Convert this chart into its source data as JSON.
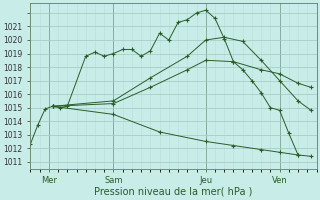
{
  "xlabel": "Pression niveau de la mer( hPa )",
  "yticks": [
    1010,
    1011,
    1012,
    1013,
    1014,
    1015,
    1016,
    1017,
    1018,
    1019,
    1020,
    1021
  ],
  "bg_color": "#c8ece8",
  "grid_major_color": "#a0c8c0",
  "grid_minor_color": "#b8dcd8",
  "line_color": "#2a5c2a",
  "xtick_labels": [
    "Mer",
    "Sam",
    "Jeu",
    "Ven"
  ],
  "xtick_positions": [
    1.0,
    4.5,
    9.5,
    13.5
  ],
  "vline_positions": [
    1.0,
    4.5,
    9.5,
    13.5
  ],
  "xlim": [
    0.0,
    15.5
  ],
  "ylim": [
    1009.5,
    1021.7
  ],
  "line1_x": [
    0.0,
    0.4,
    0.8,
    1.2,
    1.6,
    2.0,
    3.0,
    3.5,
    4.0,
    4.5,
    5.0,
    5.5,
    6.0,
    6.5,
    7.0,
    7.5,
    8.0,
    8.5,
    9.0,
    9.5,
    10.0,
    10.5,
    11.0,
    11.5,
    12.0,
    12.5,
    13.0,
    13.5,
    14.0,
    14.5
  ],
  "line1_y": [
    1011.3,
    1012.7,
    1013.9,
    1014.1,
    1014.0,
    1014.1,
    1017.8,
    1018.1,
    1017.8,
    1018.0,
    1018.3,
    1018.3,
    1017.8,
    1018.2,
    1019.5,
    1019.0,
    1020.3,
    1020.5,
    1021.0,
    1021.2,
    1020.6,
    1019.1,
    1017.4,
    1016.8,
    1016.0,
    1015.1,
    1014.0,
    1013.8,
    1012.1,
    1010.5
  ],
  "line2_x": [
    1.2,
    4.5,
    6.5,
    8.5,
    9.5,
    11.0,
    12.5,
    13.5,
    14.5,
    15.2
  ],
  "line2_y": [
    1014.1,
    1014.3,
    1015.5,
    1016.8,
    1017.5,
    1017.4,
    1016.8,
    1016.5,
    1015.8,
    1015.5
  ],
  "line3_x": [
    1.2,
    4.5,
    6.5,
    8.5,
    9.5,
    10.5,
    11.5,
    12.5,
    13.5,
    14.5,
    15.2
  ],
  "line3_y": [
    1014.1,
    1014.5,
    1016.2,
    1017.8,
    1019.0,
    1019.2,
    1018.9,
    1017.5,
    1016.0,
    1014.5,
    1013.8
  ],
  "line4_x": [
    1.2,
    4.5,
    7.0,
    9.5,
    11.0,
    12.5,
    13.5,
    14.5,
    15.2
  ],
  "line4_y": [
    1014.1,
    1013.5,
    1012.2,
    1011.5,
    1011.2,
    1010.9,
    1010.7,
    1010.5,
    1010.4
  ]
}
